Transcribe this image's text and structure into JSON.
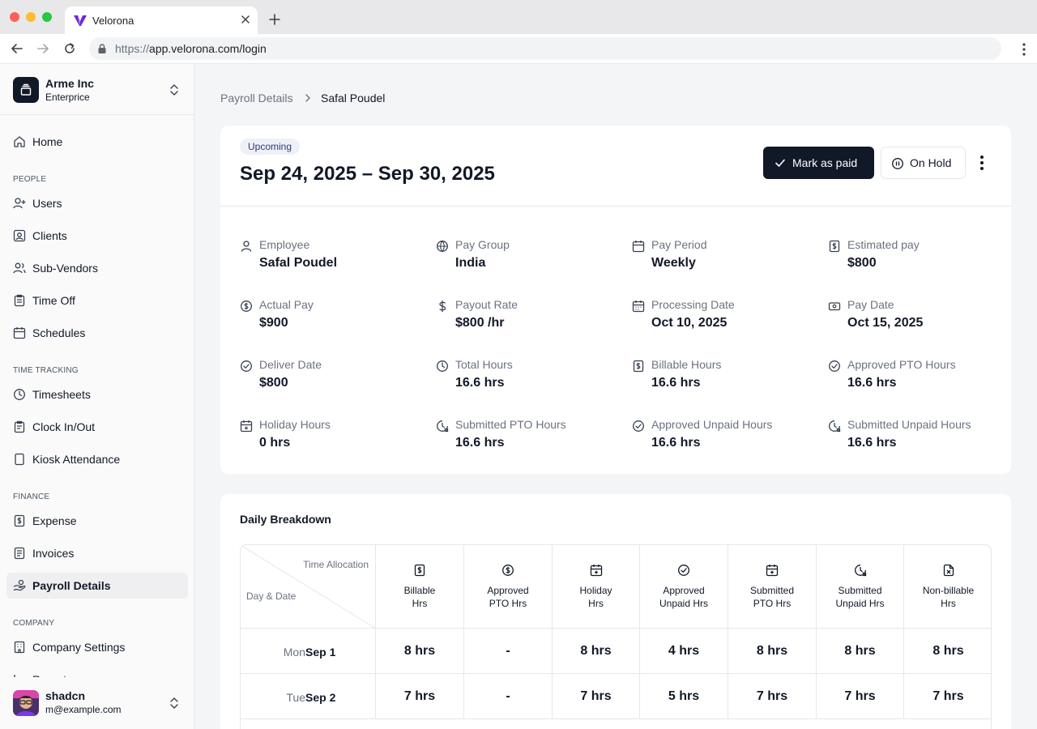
{
  "browser": {
    "tab_title": "Velorona",
    "url_scheme": "https://",
    "url_rest": "app.velorona.com/login"
  },
  "sidebar": {
    "org_name": "Arme Inc",
    "org_plan": "Enterprice",
    "home": "Home",
    "sections": {
      "people": "PEOPLE",
      "time_tracking": "TIME TRACKING",
      "finance": "FINANCE",
      "company": "COMPANY"
    },
    "items": {
      "users": "Users",
      "clients": "Clients",
      "sub_vendors": "Sub-Vendors",
      "time_off": "Time Off",
      "schedules": "Schedules",
      "timesheets": "Timesheets",
      "clock": "Clock In/Out",
      "kiosk": "Kiosk Attendance",
      "expense": "Expense",
      "invoices": "Invoices",
      "payroll": "Payroll Details",
      "company_settings": "Company Settings",
      "reports_partial": "Reports"
    },
    "user": {
      "name": "shadcn",
      "email": "m@example.com"
    }
  },
  "breadcrumb": {
    "parent": "Payroll Details",
    "current": "Safal Poudel"
  },
  "summary": {
    "badge": "Upcoming",
    "period": "Sep 24, 2025 – Sep 30, 2025",
    "mark_paid": "Mark as paid",
    "on_hold": "On Hold",
    "fields": {
      "employee": {
        "label": "Employee",
        "value": "Safal Poudel"
      },
      "pay_group": {
        "label": "Pay Group",
        "value": "India"
      },
      "pay_period": {
        "label": "Pay Period",
        "value": "Weekly"
      },
      "estimated_pay": {
        "label": "Estimated pay",
        "value": "$800"
      },
      "actual_pay": {
        "label": "Actual Pay",
        "value": "$900"
      },
      "payout_rate": {
        "label": "Payout Rate",
        "value": "$800 /hr"
      },
      "processing_date": {
        "label": "Processing Date",
        "value": "Oct 10, 2025"
      },
      "pay_date": {
        "label": "Pay Date",
        "value": "Oct 15, 2025"
      },
      "deliver_date": {
        "label": "Deliver Date",
        "value": "$800"
      },
      "total_hours": {
        "label": "Total Hours",
        "value": "16.6 hrs"
      },
      "billable_hours": {
        "label": "Billable Hours",
        "value": "16.6 hrs"
      },
      "approved_pto": {
        "label": "Approved PTO Hours",
        "value": "16.6 hrs"
      },
      "holiday_hours": {
        "label": "Holiday Hours",
        "value": "0 hrs"
      },
      "submitted_pto": {
        "label": "Submitted PTO Hours",
        "value": "16.6 hrs"
      },
      "approved_unpaid": {
        "label": "Approved Unpaid Hours",
        "value": "16.6 hrs"
      },
      "submitted_unpaid": {
        "label": "Submitted Unpaid Hours",
        "value": "16.6 hrs"
      }
    }
  },
  "daily": {
    "title": "Daily Breakdown",
    "corner_top": "Time Allocation",
    "corner_bottom": "Day & Date",
    "columns": [
      {
        "line1": "Billable",
        "line2": "Hrs"
      },
      {
        "line1": "Approved",
        "line2": "PTO Hrs"
      },
      {
        "line1": "Holiday",
        "line2": "Hrs"
      },
      {
        "line1": "Approved",
        "line2": "Unpaid Hrs"
      },
      {
        "line1": "Submitted",
        "line2": "PTO Hrs"
      },
      {
        "line1": "Submitted",
        "line2": "Unpaid Hrs"
      },
      {
        "line1": "Non-billable",
        "line2": "Hrs"
      }
    ],
    "rows": [
      {
        "day": "Mon",
        "date": "Sep 1",
        "cells": [
          "8 hrs",
          "-",
          "8 hrs",
          "4 hrs",
          "8 hrs",
          "8 hrs",
          "8 hrs"
        ]
      },
      {
        "day": "Tue",
        "date": "Sep 2",
        "cells": [
          "7 hrs",
          "-",
          "7 hrs",
          "5 hrs",
          "7 hrs",
          "7 hrs",
          "7 hrs"
        ]
      }
    ]
  },
  "colors": {
    "primary": "#111827",
    "badge_bg": "#eef1f8",
    "badge_text": "#2f3b71",
    "brand": "#6d28d9"
  }
}
